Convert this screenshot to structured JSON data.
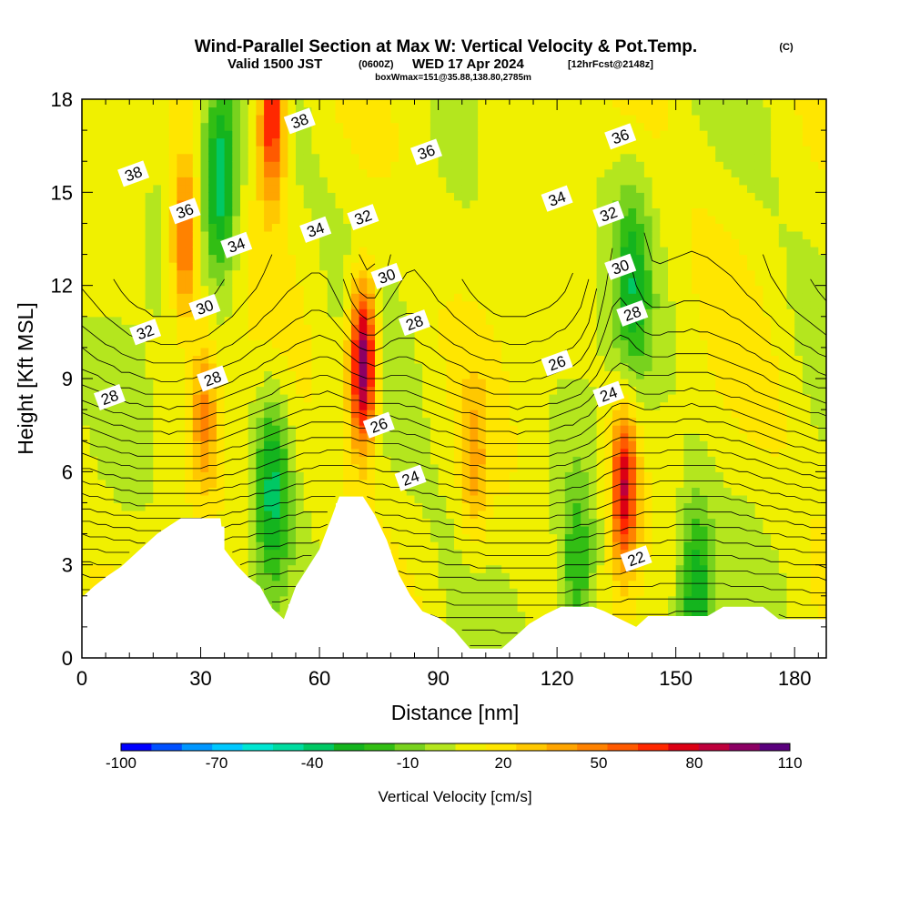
{
  "title": {
    "main": "Wind-Parallel Section at Max W: Vertical Velocity & Pot.Temp.",
    "copyright": "(C)",
    "valid_prefix": "Valid 1500 JST",
    "valid_utc": "(0600Z)",
    "valid_date": "WED 17 Apr 2024",
    "forecast": "[12hrFcst@2148z]",
    "box_info": "boxWmax=151@35.88,138.80,2785m"
  },
  "chart_data": {
    "type": "heatmap",
    "xlabel": "Distance [nm]",
    "ylabel": "Height [Kft MSL]",
    "xlim": [
      0,
      188
    ],
    "ylim": [
      0,
      18
    ],
    "x_ticks": [
      "0",
      "30",
      "60",
      "90",
      "120",
      "150",
      "180"
    ],
    "x_tick_values": [
      0,
      30,
      60,
      90,
      120,
      150,
      180
    ],
    "y_ticks": [
      "0",
      "3",
      "6",
      "9",
      "12",
      "15",
      "18"
    ],
    "y_tick_values": [
      0,
      3,
      6,
      9,
      12,
      15,
      18
    ],
    "colorbar": {
      "label": "Vertical Velocity [cm/s]",
      "labels": [
        "-100",
        "-70",
        "-40",
        "-10",
        "20",
        "50",
        "80",
        "110"
      ],
      "min": -100,
      "max": 110,
      "step": 10,
      "colors": [
        "#0000ff",
        "#0050ff",
        "#0096ff",
        "#00c8ff",
        "#00e6d2",
        "#00dca0",
        "#00c864",
        "#14b41e",
        "#32be14",
        "#78d21e",
        "#b4e61e",
        "#f0f000",
        "#ffe600",
        "#ffc800",
        "#ffa500",
        "#ff8200",
        "#ff5a00",
        "#ff2800",
        "#dc0014",
        "#be003c",
        "#8c0064",
        "#5a007d"
      ]
    },
    "vertical_velocity": {
      "units": "cm/s",
      "features": [
        {
          "kind": "updraft",
          "x": 71,
          "z": 9.5,
          "peak": 110
        },
        {
          "kind": "updraft",
          "x": 137,
          "z": 5.5,
          "peak": 80
        },
        {
          "kind": "updraft",
          "x": 48,
          "z": 17.5,
          "peak": 80
        },
        {
          "kind": "updraft",
          "x": 26,
          "z": 13.5,
          "peak": 60
        },
        {
          "kind": "updraft",
          "x": 31,
          "z": 8,
          "peak": 40
        },
        {
          "kind": "updraft",
          "x": 99,
          "z": 6,
          "peak": 30
        },
        {
          "kind": "downdraft",
          "x": 35,
          "z": 15.5,
          "peak": -50
        },
        {
          "kind": "downdraft",
          "x": 48,
          "z": 5.5,
          "peak": -40
        },
        {
          "kind": "downdraft",
          "x": 155,
          "z": 2,
          "peak": -40
        },
        {
          "kind": "downdraft",
          "x": 139,
          "z": 12,
          "peak": -30
        },
        {
          "kind": "downdraft",
          "x": 125,
          "z": 2.5,
          "peak": -30
        }
      ]
    },
    "potential_temperature": {
      "units": "C",
      "contour_labels": [
        {
          "label": "38",
          "x": 13,
          "z": 15.6
        },
        {
          "label": "38",
          "x": 55,
          "z": 17.3
        },
        {
          "label": "36",
          "x": 26,
          "z": 14.4
        },
        {
          "label": "36",
          "x": 87,
          "z": 16.3
        },
        {
          "label": "36",
          "x": 136,
          "z": 16.8
        },
        {
          "label": "34",
          "x": 39,
          "z": 13.3
        },
        {
          "label": "34",
          "x": 59,
          "z": 13.8
        },
        {
          "label": "34",
          "x": 120,
          "z": 14.8
        },
        {
          "label": "32",
          "x": 16,
          "z": 10.5
        },
        {
          "label": "32",
          "x": 71,
          "z": 14.2
        },
        {
          "label": "32",
          "x": 133,
          "z": 14.3
        },
        {
          "label": "30",
          "x": 31,
          "z": 11.3
        },
        {
          "label": "30",
          "x": 77,
          "z": 12.3
        },
        {
          "label": "30",
          "x": 136,
          "z": 12.6
        },
        {
          "label": "28",
          "x": 7,
          "z": 8.4
        },
        {
          "label": "28",
          "x": 33,
          "z": 9
        },
        {
          "label": "28",
          "x": 84,
          "z": 10.8
        },
        {
          "label": "28",
          "x": 139,
          "z": 11.1
        },
        {
          "label": "26",
          "x": 75,
          "z": 7.5
        },
        {
          "label": "26",
          "x": 120,
          "z": 9.5
        },
        {
          "label": "24",
          "x": 83,
          "z": 5.8
        },
        {
          "label": "24",
          "x": 133,
          "z": 8.5
        },
        {
          "label": "22",
          "x": 140,
          "z": 3.2
        }
      ]
    },
    "terrain_kft": [
      [
        0,
        1.95
      ],
      [
        3,
        2.3
      ],
      [
        6,
        2.6
      ],
      [
        10,
        2.95
      ],
      [
        13,
        3.3
      ],
      [
        16,
        3.65
      ],
      [
        19,
        4.0
      ],
      [
        22,
        4.25
      ],
      [
        25,
        4.5
      ],
      [
        35,
        4.5
      ],
      [
        36,
        3.5
      ],
      [
        39,
        3.0
      ],
      [
        42,
        2.6
      ],
      [
        45,
        2.3
      ],
      [
        48,
        1.6
      ],
      [
        51,
        1.25
      ],
      [
        54,
        2.3
      ],
      [
        57,
        2.9
      ],
      [
        60,
        3.5
      ],
      [
        63,
        4.5
      ],
      [
        65,
        5.2
      ],
      [
        71,
        5.2
      ],
      [
        74,
        4.6
      ],
      [
        77,
        3.8
      ],
      [
        80,
        2.7
      ],
      [
        83,
        2.0
      ],
      [
        86,
        1.5
      ],
      [
        90,
        1.3
      ],
      [
        94,
        0.9
      ],
      [
        98,
        0.3
      ],
      [
        106,
        0.3
      ],
      [
        110,
        0.75
      ],
      [
        113,
        1.1
      ],
      [
        117,
        1.4
      ],
      [
        121,
        1.65
      ],
      [
        129,
        1.65
      ],
      [
        132,
        1.5
      ],
      [
        136,
        1.25
      ],
      [
        140,
        1.0
      ],
      [
        143,
        1.35
      ],
      [
        151,
        1.35
      ],
      [
        158,
        1.35
      ],
      [
        162,
        1.65
      ],
      [
        172,
        1.65
      ],
      [
        176,
        1.25
      ],
      [
        188,
        1.25
      ]
    ]
  }
}
